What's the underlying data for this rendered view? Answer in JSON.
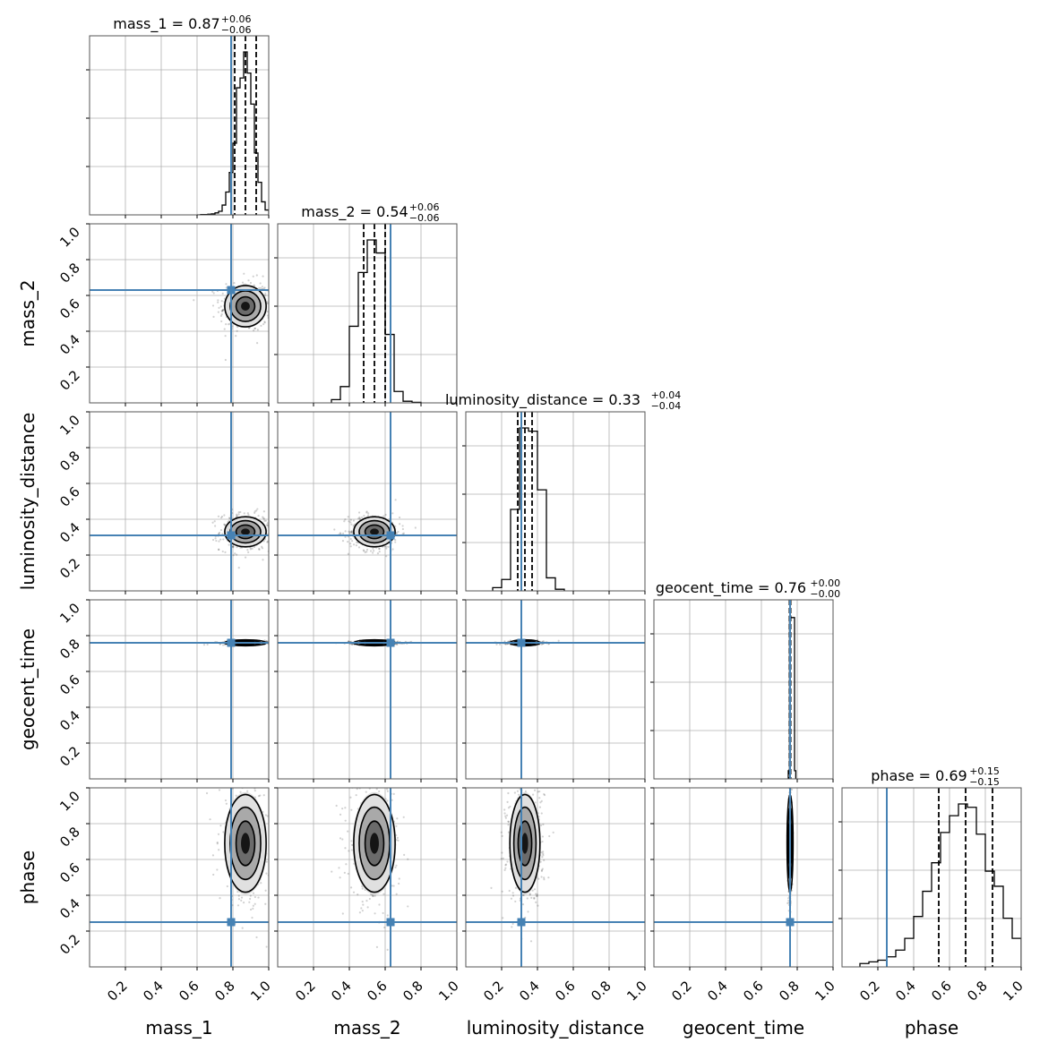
{
  "chart_data": {
    "type": "corner",
    "parameters": [
      "mass_1",
      "mass_2",
      "luminosity_distance",
      "geocent_time",
      "phase"
    ],
    "axis_labels": [
      "mass_1",
      "mass_2",
      "luminosity_distance",
      "geocent_time",
      "phase"
    ],
    "range": [
      0,
      1
    ],
    "tick_labels": [
      "0.2",
      "0.4",
      "0.6",
      "0.8",
      "1.0"
    ],
    "tick_values": [
      0.2,
      0.4,
      0.6,
      0.8,
      1.0
    ],
    "grid": true,
    "injection_values": [
      0.79,
      0.63,
      0.31,
      0.76,
      0.25
    ],
    "injection_color": "#4682b4",
    "marginal_titles": [
      {
        "label": "mass_1 = 0.87",
        "plus": "+0.06",
        "minus": "−0.06"
      },
      {
        "label": "mass_2 = 0.54",
        "plus": "+0.06",
        "minus": "−0.06"
      },
      {
        "label": "luminosity_distance = 0.33",
        "plus": "+0.04",
        "minus": "−0.04"
      },
      {
        "label": "geocent_time = 0.76",
        "plus": "+0.00",
        "minus": "−0.00"
      },
      {
        "label": "phase = 0.69",
        "plus": "+0.15",
        "minus": "−0.15"
      }
    ],
    "medians": [
      0.87,
      0.54,
      0.33,
      0.76,
      0.69
    ],
    "quantiles": [
      [
        0.81,
        0.93
      ],
      [
        0.48,
        0.6
      ],
      [
        0.29,
        0.37
      ],
      [
        0.757,
        0.763
      ],
      [
        0.54,
        0.84
      ]
    ],
    "histograms": [
      {
        "edges": [
          0.6,
          0.62,
          0.64,
          0.66,
          0.68,
          0.7,
          0.72,
          0.74,
          0.76,
          0.78,
          0.8,
          0.82,
          0.84,
          0.86,
          0.88,
          0.9,
          0.92,
          0.94,
          0.96,
          0.98,
          1.0
        ],
        "counts": [
          0,
          0.002,
          0.002,
          0.004,
          0.006,
          0.012,
          0.022,
          0.06,
          0.14,
          0.26,
          0.44,
          0.78,
          0.84,
          1.0,
          0.87,
          0.68,
          0.38,
          0.2,
          0.08,
          0.03
        ]
      },
      {
        "edges": [
          0.3,
          0.35,
          0.4,
          0.45,
          0.5,
          0.55,
          0.6,
          0.65,
          0.7,
          0.75,
          0.8
        ],
        "counts": [
          0.02,
          0.1,
          0.47,
          0.8,
          1.0,
          0.92,
          0.42,
          0.07,
          0.01,
          0.003
        ]
      },
      {
        "edges": [
          0.15,
          0.2,
          0.25,
          0.3,
          0.35,
          0.4,
          0.45,
          0.5,
          0.55
        ],
        "counts": [
          0.02,
          0.07,
          0.5,
          1.0,
          0.98,
          0.62,
          0.08,
          0.01
        ]
      },
      {
        "edges": [
          0.75,
          0.757,
          0.764,
          0.771,
          0.778,
          0.785,
          0.792
        ],
        "counts": [
          0.05,
          1.0,
          0.99,
          0.99,
          0.99,
          0.05
        ]
      },
      {
        "edges": [
          0.1,
          0.15,
          0.2,
          0.25,
          0.3,
          0.35,
          0.4,
          0.45,
          0.5,
          0.55,
          0.6,
          0.65,
          0.7,
          0.75,
          0.8,
          0.85,
          0.9,
          0.95,
          1.0
        ],
        "counts": [
          0.02,
          0.03,
          0.04,
          0.06,
          0.1,
          0.17,
          0.3,
          0.45,
          0.62,
          0.8,
          0.9,
          0.97,
          0.95,
          0.79,
          0.57,
          0.48,
          0.29,
          0.17
        ]
      }
    ],
    "posterior_2d": {
      "sigmas": [
        0.055,
        0.055,
        0.04,
        0.004,
        0.13
      ],
      "correlation": 0
    }
  }
}
